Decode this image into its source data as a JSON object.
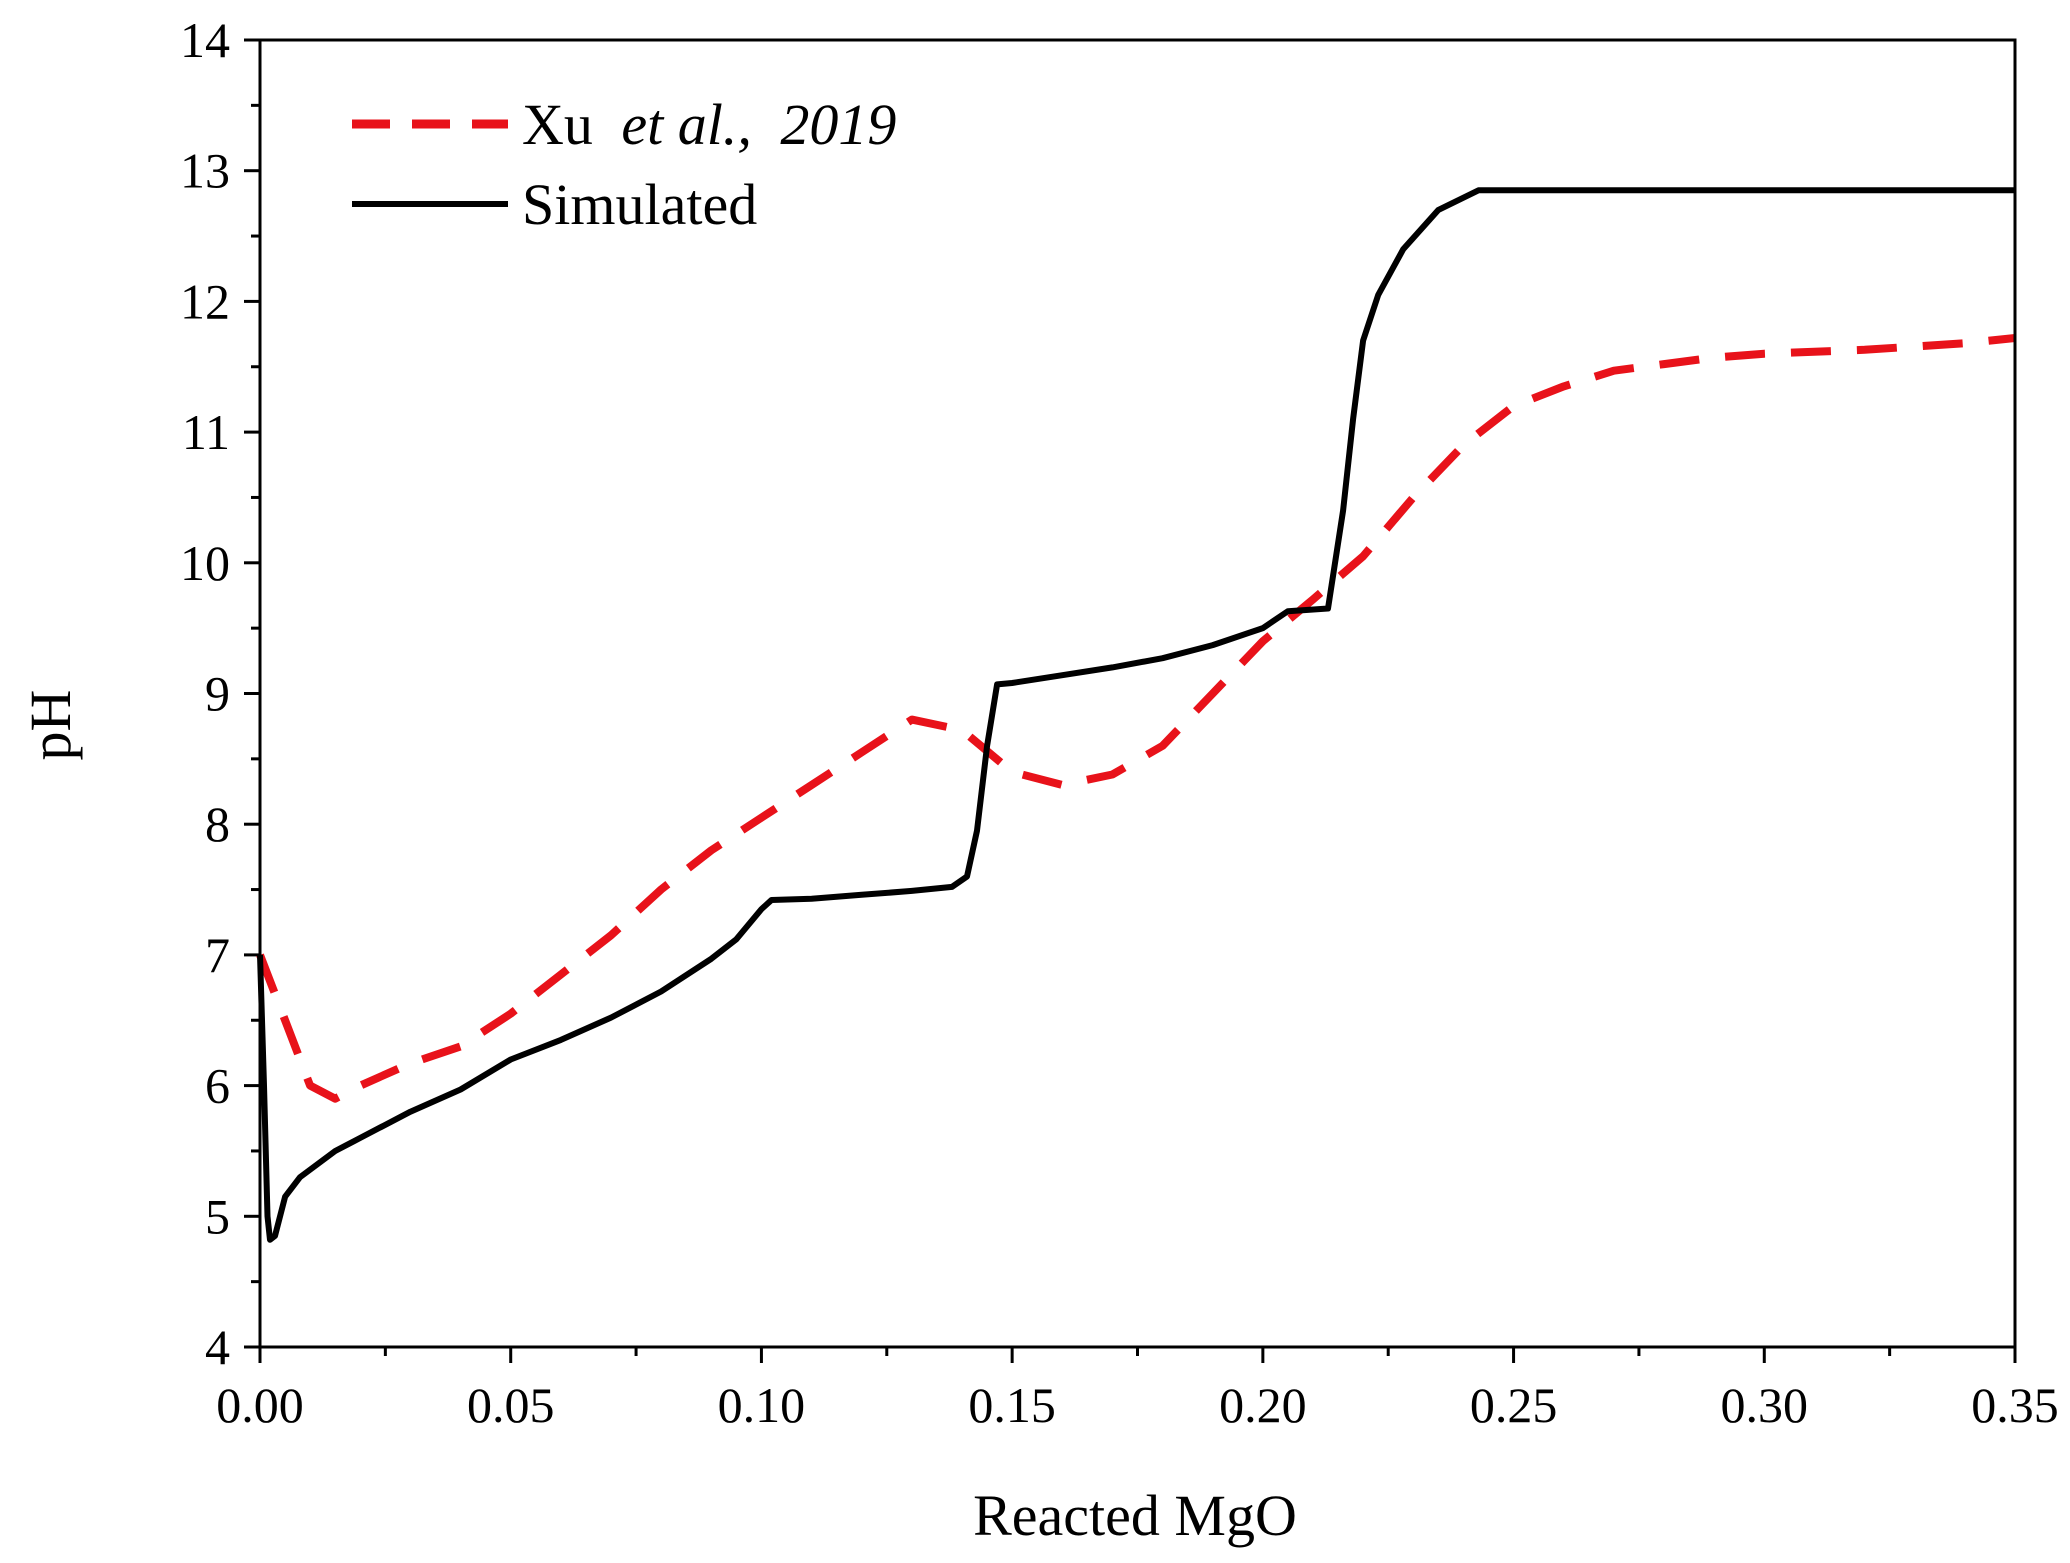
{
  "chart_data": {
    "type": "line",
    "title": "",
    "xlabel": "Reacted MgO",
    "ylabel": "pH",
    "xlim": [
      0,
      0.35
    ],
    "ylim": [
      4,
      14
    ],
    "x_ticks": [
      "0.00",
      "0.05",
      "0.10",
      "0.15",
      "0.20",
      "0.25",
      "0.30",
      "0.35"
    ],
    "y_ticks": [
      "4",
      "5",
      "6",
      "7",
      "8",
      "9",
      "10",
      "11",
      "12",
      "13",
      "14"
    ],
    "legend_position": "top-left",
    "series": [
      {
        "name": "Xu et al., 2019",
        "legend_author": "Xu",
        "legend_etal": "et al.,",
        "legend_year": "2019",
        "color": "#e8121a",
        "style": "dashed",
        "points": [
          [
            0.0,
            7.0
          ],
          [
            0.005,
            6.5
          ],
          [
            0.01,
            6.0
          ],
          [
            0.015,
            5.9
          ],
          [
            0.02,
            6.0
          ],
          [
            0.03,
            6.17
          ],
          [
            0.04,
            6.3
          ],
          [
            0.05,
            6.55
          ],
          [
            0.06,
            6.85
          ],
          [
            0.07,
            7.15
          ],
          [
            0.08,
            7.5
          ],
          [
            0.09,
            7.8
          ],
          [
            0.1,
            8.05
          ],
          [
            0.11,
            8.3
          ],
          [
            0.12,
            8.55
          ],
          [
            0.13,
            8.8
          ],
          [
            0.14,
            8.72
          ],
          [
            0.15,
            8.4
          ],
          [
            0.16,
            8.3
          ],
          [
            0.17,
            8.38
          ],
          [
            0.18,
            8.6
          ],
          [
            0.19,
            9.0
          ],
          [
            0.2,
            9.4
          ],
          [
            0.21,
            9.72
          ],
          [
            0.22,
            10.05
          ],
          [
            0.23,
            10.5
          ],
          [
            0.24,
            10.9
          ],
          [
            0.25,
            11.2
          ],
          [
            0.26,
            11.35
          ],
          [
            0.27,
            11.47
          ],
          [
            0.28,
            11.52
          ],
          [
            0.29,
            11.57
          ],
          [
            0.3,
            11.6
          ],
          [
            0.32,
            11.63
          ],
          [
            0.34,
            11.68
          ],
          [
            0.35,
            11.72
          ]
        ]
      },
      {
        "name": "Simulated",
        "color": "#000000",
        "style": "solid",
        "points": [
          [
            0.0,
            7.0
          ],
          [
            0.0008,
            6.0
          ],
          [
            0.0015,
            5.0
          ],
          [
            0.002,
            4.82
          ],
          [
            0.003,
            4.85
          ],
          [
            0.005,
            5.15
          ],
          [
            0.008,
            5.3
          ],
          [
            0.015,
            5.5
          ],
          [
            0.02,
            5.6
          ],
          [
            0.03,
            5.8
          ],
          [
            0.04,
            5.97
          ],
          [
            0.05,
            6.2
          ],
          [
            0.06,
            6.35
          ],
          [
            0.07,
            6.52
          ],
          [
            0.08,
            6.72
          ],
          [
            0.09,
            6.97
          ],
          [
            0.095,
            7.12
          ],
          [
            0.1,
            7.35
          ],
          [
            0.102,
            7.42
          ],
          [
            0.11,
            7.43
          ],
          [
            0.12,
            7.46
          ],
          [
            0.13,
            7.49
          ],
          [
            0.138,
            7.52
          ],
          [
            0.141,
            7.6
          ],
          [
            0.143,
            7.95
          ],
          [
            0.145,
            8.6
          ],
          [
            0.147,
            9.07
          ],
          [
            0.15,
            9.08
          ],
          [
            0.16,
            9.14
          ],
          [
            0.17,
            9.2
          ],
          [
            0.18,
            9.27
          ],
          [
            0.19,
            9.37
          ],
          [
            0.2,
            9.5
          ],
          [
            0.205,
            9.63
          ],
          [
            0.213,
            9.65
          ],
          [
            0.216,
            10.4
          ],
          [
            0.218,
            11.1
          ],
          [
            0.22,
            11.7
          ],
          [
            0.223,
            12.05
          ],
          [
            0.228,
            12.4
          ],
          [
            0.235,
            12.7
          ],
          [
            0.243,
            12.85
          ],
          [
            0.25,
            12.85
          ],
          [
            0.3,
            12.85
          ],
          [
            0.35,
            12.85
          ]
        ]
      }
    ]
  }
}
